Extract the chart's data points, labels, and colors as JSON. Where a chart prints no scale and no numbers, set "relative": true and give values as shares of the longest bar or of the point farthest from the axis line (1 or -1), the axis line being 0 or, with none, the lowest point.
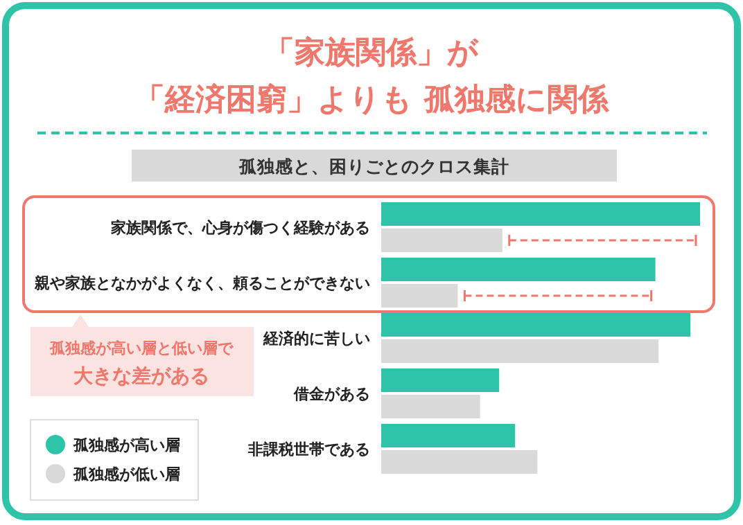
{
  "chart_data": {
    "type": "bar",
    "orientation": "horizontal",
    "relative": true,
    "title": "「家族関係」が",
    "subtitle": "「経済困窮」よりも 孤独感に関係",
    "categories": [
      "家族関係で、心身が傷つく経験がある",
      "親や家族となかがよくなく、頼ることができない",
      "経済的に苦しい",
      "借金がある",
      "非課税世帯である"
    ],
    "series": [
      {
        "name": "孤独感が高い層",
        "color": "#2ec4a9",
        "values": [
          1,
          0.86,
          0.97,
          0.37,
          0.42
        ]
      },
      {
        "name": "孤独感が低い層",
        "color": "#d9d9d9",
        "values": [
          0.38,
          0.24,
          0.87,
          0.31,
          0.49
        ]
      }
    ],
    "annotations": [
      "孤独感と、困りごとのクロス集計",
      "孤独感が高い層と低い層で",
      "大きな差がある"
    ],
    "legend": "bottom left"
  }
}
